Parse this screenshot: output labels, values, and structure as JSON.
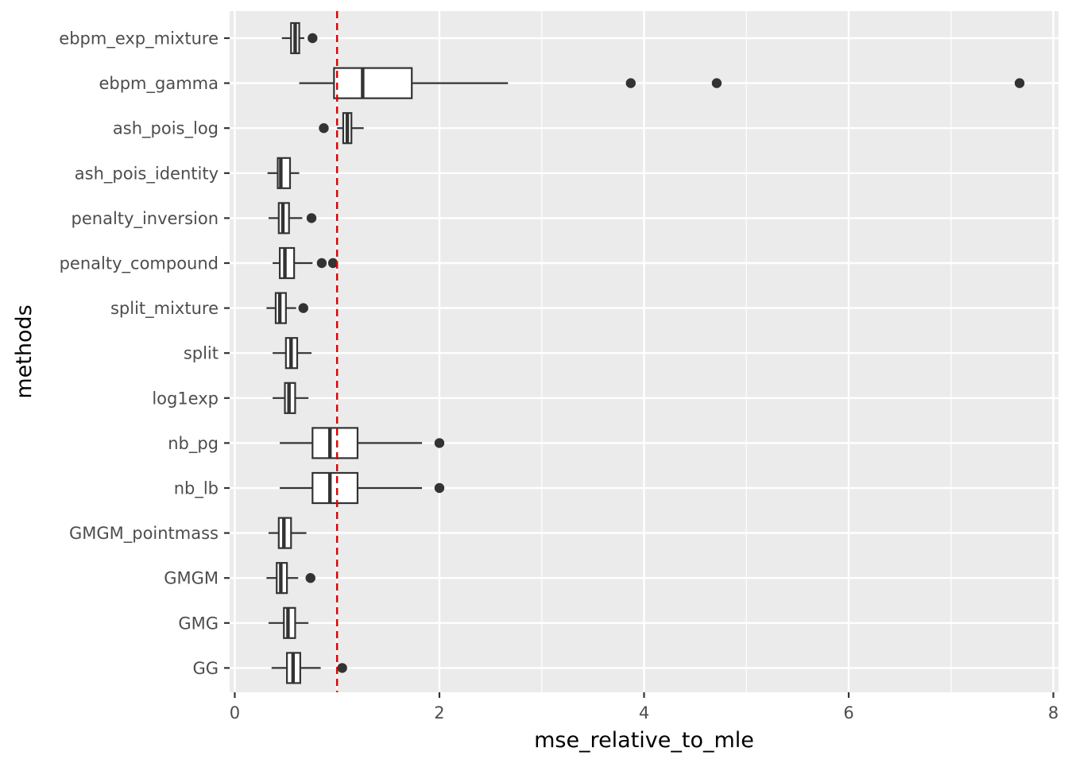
{
  "chart_data": {
    "type": "boxplot",
    "orientation": "horizontal",
    "xlabel": "mse_relative_to_mle",
    "ylabel": "methods",
    "xlim": [
      -0.05,
      8.05
    ],
    "x_ticks": [
      0,
      2,
      4,
      6,
      8
    ],
    "x_minor_ticks": [
      1,
      3,
      5,
      7
    ],
    "grid": true,
    "reference_line": {
      "value": 1,
      "style": "dashed",
      "color": "#e00000"
    },
    "colors": {
      "panel": "#ebebeb",
      "grid": "#ffffff",
      "box_stroke": "#333333",
      "box_fill": "#ffffff",
      "outlier": "#333333",
      "tick_text": "#4d4d4d"
    },
    "categories": [
      "ebpm_exp_mixture",
      "ebpm_gamma",
      "ash_pois_log",
      "ash_pois_identity",
      "penalty_inversion",
      "penalty_compound",
      "split_mixture",
      "split",
      "log1exp",
      "nb_pg",
      "nb_lb",
      "GMGM_pointmass",
      "GMGM",
      "GMG",
      "GG"
    ],
    "boxes": [
      {
        "label": "ebpm_exp_mixture",
        "min": 0.46,
        "q1": 0.55,
        "median": 0.59,
        "q3": 0.63,
        "max": 0.68,
        "outliers": [
          0.76
        ]
      },
      {
        "label": "ebpm_gamma",
        "min": 0.63,
        "q1": 0.97,
        "median": 1.25,
        "q3": 1.73,
        "max": 2.67,
        "outliers": [
          3.87,
          4.71,
          7.67
        ]
      },
      {
        "label": "ash_pois_log",
        "min": 1.0,
        "q1": 1.06,
        "median": 1.1,
        "q3": 1.14,
        "max": 1.26,
        "outliers": [
          0.87
        ]
      },
      {
        "label": "ash_pois_identity",
        "min": 0.32,
        "q1": 0.42,
        "median": 0.45,
        "q3": 0.54,
        "max": 0.63,
        "outliers": []
      },
      {
        "label": "penalty_inversion",
        "min": 0.33,
        "q1": 0.43,
        "median": 0.47,
        "q3": 0.53,
        "max": 0.66,
        "outliers": [
          0.75
        ]
      },
      {
        "label": "penalty_compound",
        "min": 0.37,
        "q1": 0.44,
        "median": 0.49,
        "q3": 0.58,
        "max": 0.76,
        "outliers": [
          0.85,
          0.96
        ]
      },
      {
        "label": "split_mixture",
        "min": 0.31,
        "q1": 0.4,
        "median": 0.44,
        "q3": 0.5,
        "max": 0.6,
        "outliers": [
          0.67
        ]
      },
      {
        "label": "split",
        "min": 0.37,
        "q1": 0.5,
        "median": 0.55,
        "q3": 0.61,
        "max": 0.75,
        "outliers": []
      },
      {
        "label": "log1exp",
        "min": 0.37,
        "q1": 0.49,
        "median": 0.53,
        "q3": 0.59,
        "max": 0.72,
        "outliers": []
      },
      {
        "label": "nb_pg",
        "min": 0.44,
        "q1": 0.76,
        "median": 0.93,
        "q3": 1.2,
        "max": 1.83,
        "outliers": [
          2.0
        ]
      },
      {
        "label": "nb_lb",
        "min": 0.44,
        "q1": 0.76,
        "median": 0.93,
        "q3": 1.2,
        "max": 1.83,
        "outliers": [
          2.0
        ]
      },
      {
        "label": "GMGM_pointmass",
        "min": 0.33,
        "q1": 0.43,
        "median": 0.48,
        "q3": 0.55,
        "max": 0.7,
        "outliers": []
      },
      {
        "label": "GMGM",
        "min": 0.31,
        "q1": 0.41,
        "median": 0.45,
        "q3": 0.51,
        "max": 0.62,
        "outliers": [
          0.74
        ]
      },
      {
        "label": "GMG",
        "min": 0.33,
        "q1": 0.48,
        "median": 0.52,
        "q3": 0.59,
        "max": 0.72,
        "outliers": []
      },
      {
        "label": "GG",
        "min": 0.36,
        "q1": 0.51,
        "median": 0.57,
        "q3": 0.64,
        "max": 0.84,
        "outliers": [
          1.05
        ]
      }
    ]
  }
}
